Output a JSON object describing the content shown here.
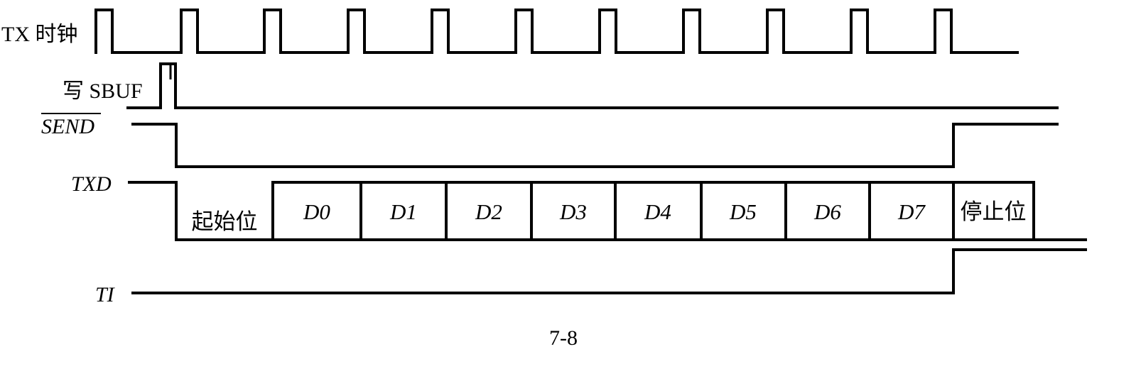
{
  "signals": {
    "tx_clock": {
      "label": "TX 时钟"
    },
    "write_sbuf": {
      "label": "写 SBUF"
    },
    "send": {
      "label": "SEND",
      "overbar": true
    },
    "txd": {
      "label": "TXD"
    },
    "ti": {
      "label": "TI"
    }
  },
  "txd_frame": [
    "起始位",
    "D0",
    "D1",
    "D2",
    "D3",
    "D4",
    "D5",
    "D6",
    "D7",
    "停止位"
  ],
  "caption": "7-8"
}
